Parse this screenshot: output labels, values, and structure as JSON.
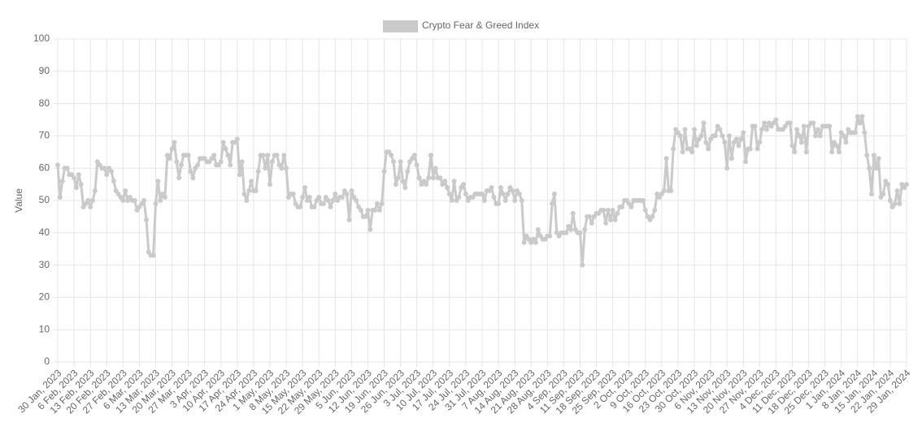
{
  "chart_data": {
    "type": "line",
    "y_label": "Value",
    "categories": [
      "30 Jan, 2023",
      null,
      null,
      null,
      null,
      null,
      null,
      "6 Feb, 2023",
      null,
      null,
      null,
      null,
      null,
      null,
      "13 Feb, 2023",
      null,
      null,
      null,
      null,
      null,
      null,
      "20 Feb, 2023",
      null,
      null,
      null,
      null,
      null,
      null,
      "27 Feb, 2023",
      null,
      null,
      null,
      null,
      null,
      null,
      "6 Mar, 2023",
      null,
      null,
      null,
      null,
      null,
      null,
      "13 Mar, 2023",
      null,
      null,
      null,
      null,
      null,
      null,
      "20 Mar, 2023",
      null,
      null,
      null,
      null,
      null,
      null,
      "27 Mar, 2023",
      null,
      null,
      null,
      null,
      null,
      null,
      "3 Apr, 2023",
      null,
      null,
      null,
      null,
      null,
      null,
      "10 Apr, 2023",
      null,
      null,
      null,
      null,
      null,
      null,
      "17 Apr, 2023",
      null,
      null,
      null,
      null,
      null,
      null,
      "24 Apr, 2023",
      null,
      null,
      null,
      null,
      null,
      null,
      "1 May, 2023",
      null,
      null,
      null,
      null,
      null,
      null,
      "8 May, 2023",
      null,
      null,
      null,
      null,
      null,
      null,
      "15 May, 2023",
      null,
      null,
      null,
      null,
      null,
      null,
      "22 May, 2023",
      null,
      null,
      null,
      null,
      null,
      null,
      "29 May, 2023",
      null,
      null,
      null,
      null,
      null,
      null,
      "5 Jun, 2023",
      null,
      null,
      null,
      null,
      null,
      null,
      "12 Jun, 2023",
      null,
      null,
      null,
      null,
      null,
      null,
      "19 Jun, 2023",
      null,
      null,
      null,
      null,
      null,
      null,
      "26 Jun, 2023",
      null,
      null,
      null,
      null,
      null,
      null,
      "3 Jul, 2023",
      null,
      null,
      null,
      null,
      null,
      null,
      "10 Jul, 2023",
      null,
      null,
      null,
      null,
      null,
      null,
      "17 Jul, 2023",
      null,
      null,
      null,
      null,
      null,
      null,
      "24 Jul, 2023",
      null,
      null,
      null,
      null,
      null,
      null,
      "31 Jul, 2023",
      null,
      null,
      null,
      null,
      null,
      null,
      "7 Aug, 2023",
      null,
      null,
      null,
      null,
      null,
      null,
      "14 Aug, 2023",
      null,
      null,
      null,
      null,
      null,
      null,
      "21 Aug, 2023",
      null,
      null,
      null,
      null,
      null,
      null,
      "28 Aug, 2023",
      null,
      null,
      null,
      null,
      null,
      null,
      "4 Sep, 2023",
      null,
      null,
      null,
      null,
      null,
      null,
      "11 Sep, 2023",
      null,
      null,
      null,
      null,
      null,
      null,
      "18 Sep, 2023",
      null,
      null,
      null,
      null,
      null,
      null,
      "25 Sep, 2023",
      null,
      null,
      null,
      null,
      null,
      null,
      "2 Oct, 2023",
      null,
      null,
      null,
      null,
      null,
      null,
      "9 Oct, 2023",
      null,
      null,
      null,
      null,
      null,
      null,
      "16 Oct, 2023",
      null,
      null,
      null,
      null,
      null,
      null,
      "23 Oct, 2023",
      null,
      null,
      null,
      null,
      null,
      null,
      "30 Oct, 2023",
      null,
      null,
      null,
      null,
      null,
      null,
      "6 Nov, 2023",
      null,
      null,
      null,
      null,
      null,
      null,
      "13 Nov, 2023",
      null,
      null,
      null,
      null,
      null,
      null,
      "20 Nov, 2023",
      null,
      null,
      null,
      null,
      null,
      null,
      "27 Nov, 2023",
      null,
      null,
      null,
      null,
      null,
      null,
      "4 Dec, 2023",
      null,
      null,
      null,
      null,
      null,
      null,
      "11 Dec, 2023",
      null,
      null,
      null,
      null,
      null,
      null,
      "18 Dec, 2023",
      null,
      null,
      null,
      null,
      null,
      null,
      "25 Dec, 2023",
      null,
      null,
      null,
      null,
      null,
      null,
      "1 Jan, 2024",
      null,
      null,
      null,
      null,
      null,
      null,
      "8 Jan, 2024",
      null,
      null,
      null,
      null,
      null,
      null,
      "15 Jan, 2024",
      null,
      null,
      null,
      null,
      null,
      null,
      "22 Jan, 2024",
      null,
      null,
      null,
      null,
      null,
      null,
      "29 Jan, 2024"
    ],
    "series": [
      {
        "name": "Crypto Fear & Greed Index",
        "color": "#cacaca",
        "values": [
          61,
          51,
          56,
          60,
          60,
          58,
          58,
          57,
          54,
          58,
          55,
          48,
          49,
          50,
          48,
          50,
          53,
          62,
          61,
          60,
          60,
          58,
          60,
          59,
          56,
          53,
          52,
          51,
          50,
          53,
          50,
          51,
          50,
          50,
          47,
          48,
          49,
          50,
          44,
          34,
          33,
          33,
          49,
          56,
          50,
          52,
          51,
          64,
          63,
          66,
          68,
          62,
          57,
          61,
          64,
          64,
          64,
          59,
          57,
          60,
          61,
          63,
          63,
          63,
          62,
          62,
          63,
          64,
          61,
          61,
          62,
          68,
          66,
          64,
          61,
          68,
          68,
          69,
          58,
          62,
          52,
          50,
          53,
          56,
          53,
          53,
          59,
          64,
          64,
          60,
          64,
          55,
          62,
          64,
          64,
          61,
          60,
          64,
          60,
          51,
          52,
          52,
          49,
          48,
          48,
          51,
          54,
          50,
          51,
          48,
          48,
          50,
          51,
          49,
          49,
          51,
          50,
          48,
          50,
          52,
          50,
          51,
          51,
          53,
          52,
          44,
          53,
          51,
          50,
          48,
          47,
          45,
          45,
          47,
          41,
          47,
          47,
          49,
          47,
          49,
          59,
          65,
          65,
          64,
          62,
          55,
          57,
          62,
          56,
          54,
          59,
          62,
          63,
          64,
          61,
          57,
          55,
          56,
          55,
          57,
          64,
          57,
          60,
          57,
          57,
          55,
          56,
          54,
          52,
          50,
          56,
          50,
          51,
          54,
          55,
          52,
          50,
          51,
          51,
          52,
          52,
          52,
          52,
          50,
          53,
          53,
          54,
          51,
          49,
          49,
          54,
          52,
          50,
          52,
          54,
          53,
          50,
          53,
          52,
          50,
          37,
          39,
          38,
          37,
          38,
          37,
          41,
          39,
          38,
          38,
          39,
          39,
          49,
          52,
          40,
          39,
          40,
          40,
          40,
          42,
          41,
          46,
          41,
          40,
          40,
          30,
          41,
          45,
          45,
          43,
          45,
          46,
          46,
          47,
          47,
          43,
          47,
          44,
          47,
          44,
          46,
          48,
          48,
          50,
          50,
          49,
          48,
          50,
          50,
          50,
          50,
          50,
          47,
          45,
          44,
          45,
          47,
          52,
          51,
          52,
          53,
          63,
          53,
          53,
          66,
          72,
          71,
          70,
          65,
          72,
          66,
          66,
          65,
          72,
          67,
          69,
          70,
          74,
          68,
          66,
          69,
          70,
          70,
          73,
          72,
          70,
          68,
          60,
          70,
          63,
          68,
          69,
          67,
          69,
          71,
          62,
          66,
          66,
          73,
          73,
          66,
          68,
          72,
          74,
          72,
          74,
          73,
          74,
          75,
          72,
          72,
          72,
          73,
          74,
          74,
          67,
          65,
          72,
          70,
          68,
          73,
          65,
          73,
          74,
          74,
          70,
          72,
          70,
          73,
          73,
          73,
          73,
          65,
          68,
          67,
          65,
          71,
          70,
          68,
          72,
          71,
          71,
          71,
          76,
          74,
          76,
          71,
          64,
          60,
          52,
          64,
          60,
          63,
          51,
          52,
          56,
          55,
          50,
          48,
          49,
          53,
          49,
          55,
          54,
          55
        ]
      }
    ],
    "ylim": [
      0,
      100
    ],
    "yticks": [
      0,
      10,
      20,
      30,
      40,
      50,
      60,
      70,
      80,
      90,
      100
    ],
    "grid": true,
    "legend": "top"
  }
}
